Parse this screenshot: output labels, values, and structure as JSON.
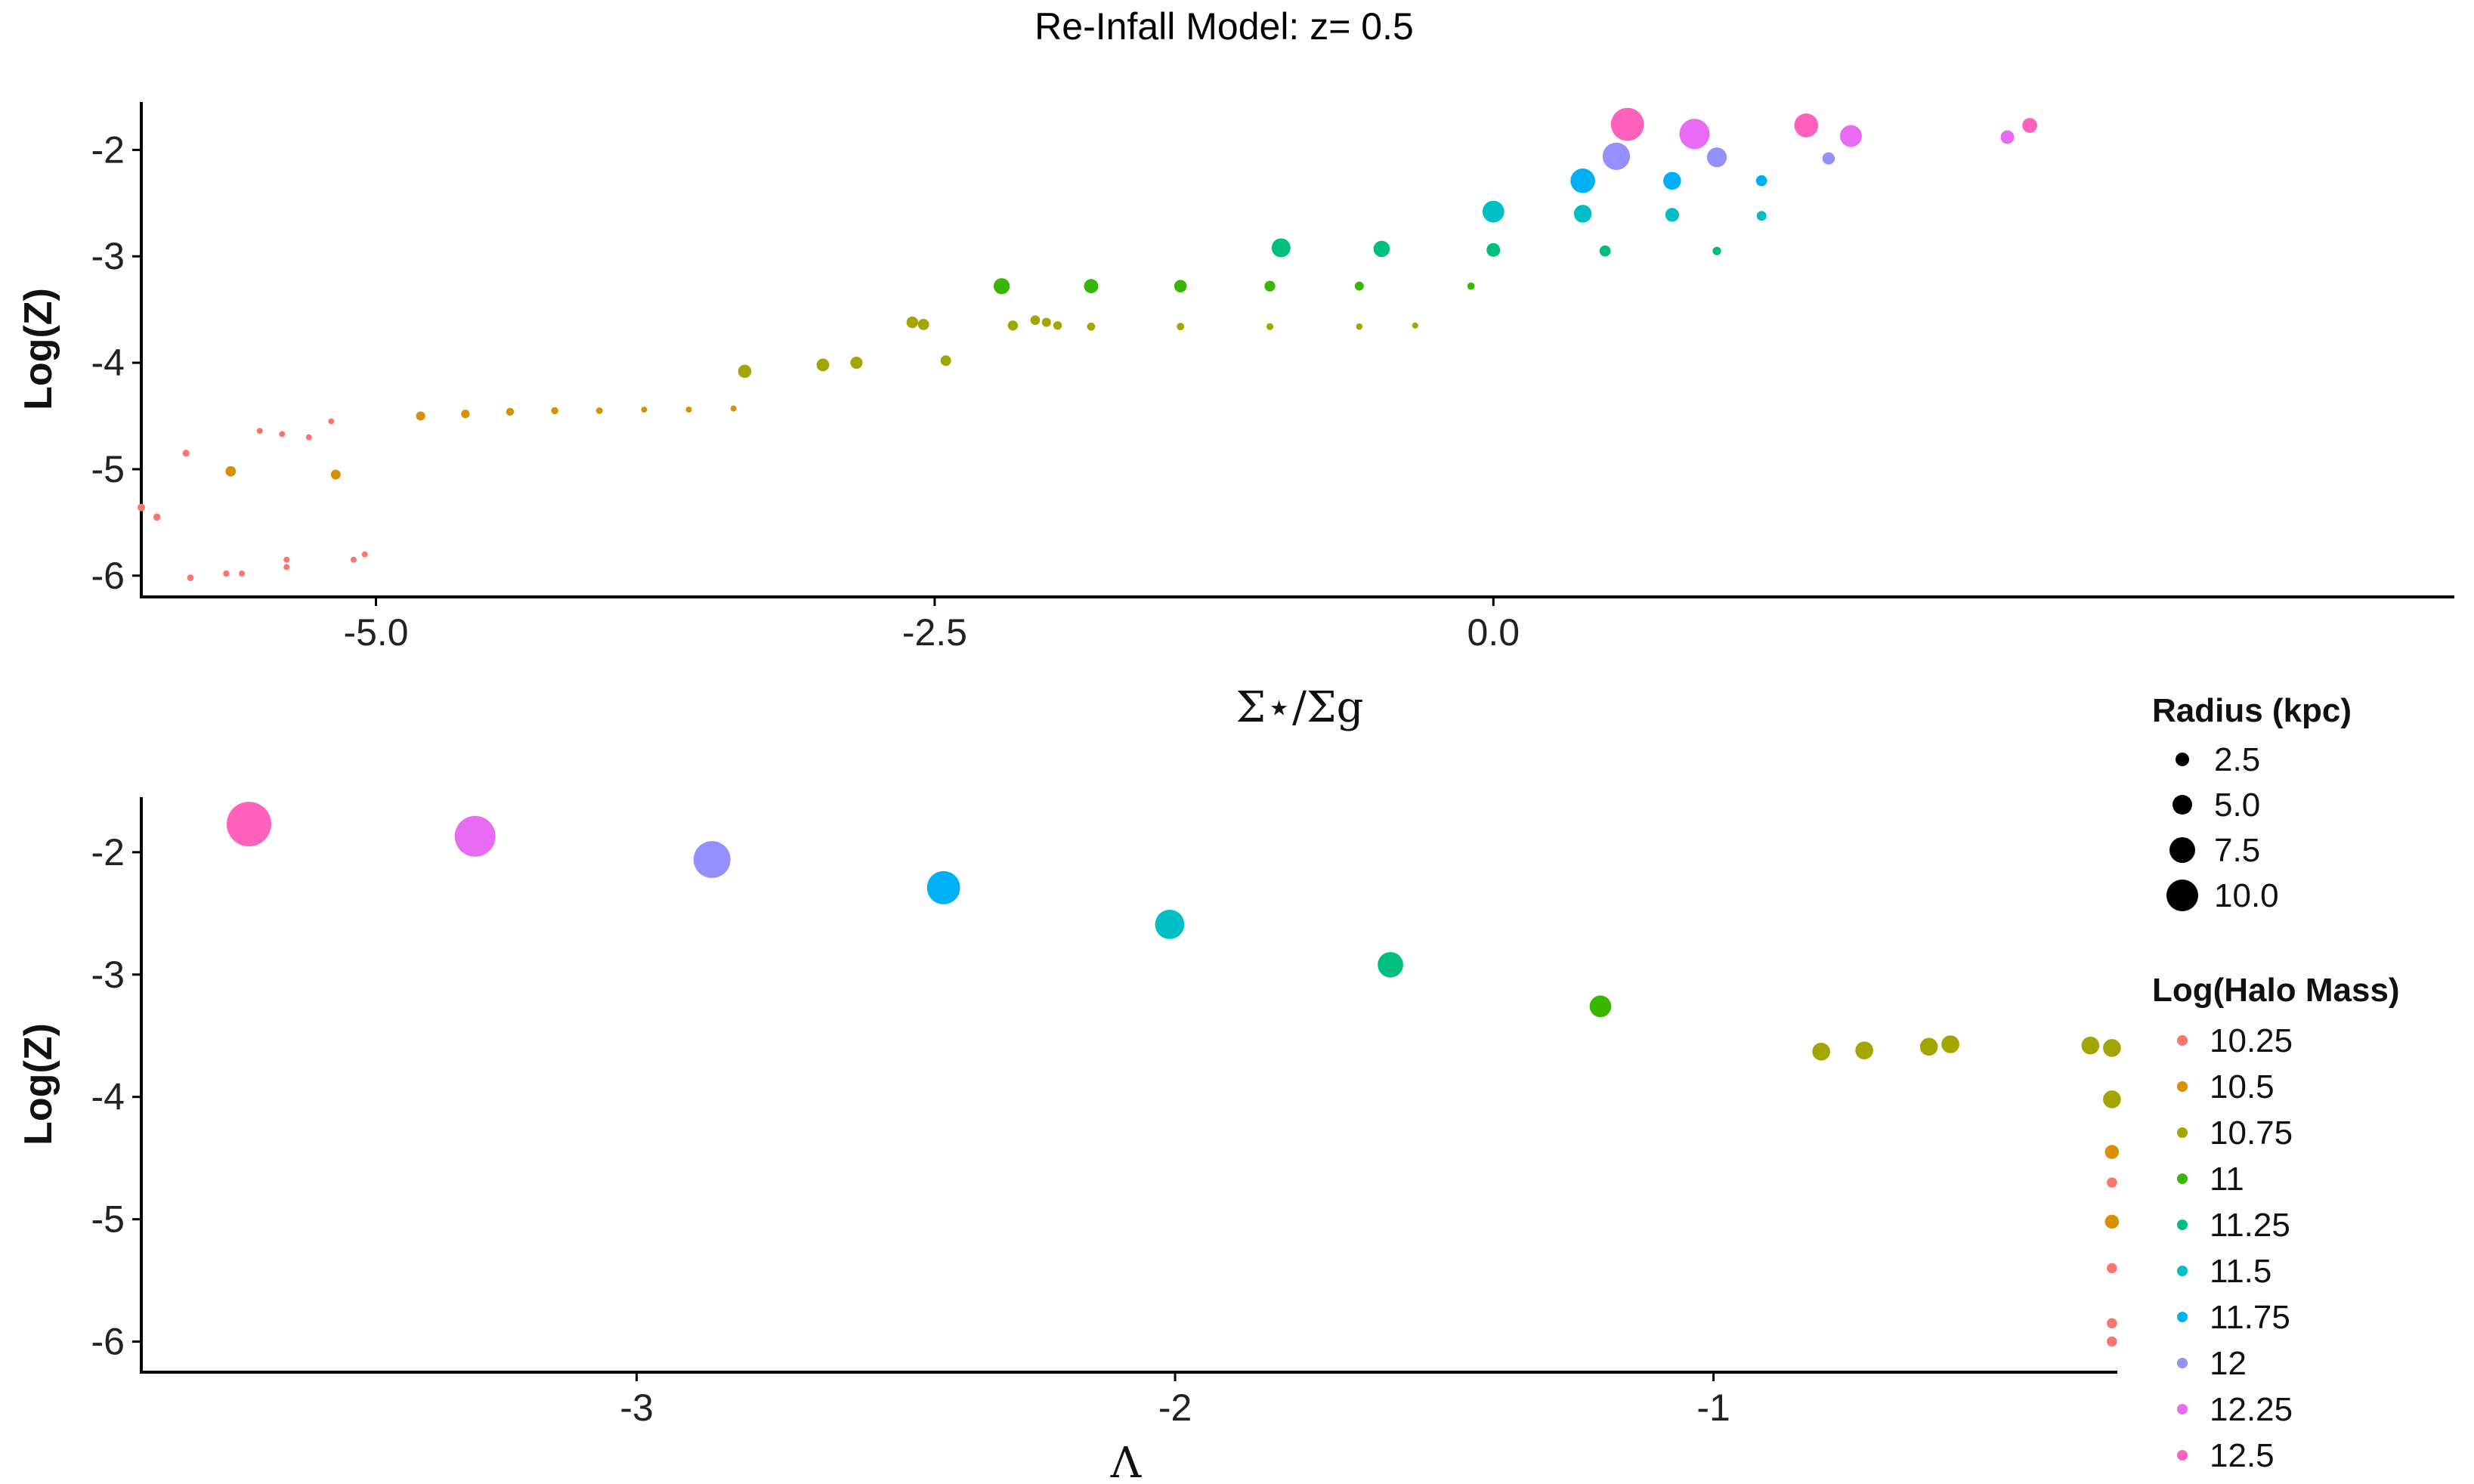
{
  "title": "Re-Infall Model: z= 0.5",
  "colors": {
    "10.25": "#F8766D",
    "10.5": "#D89000",
    "10.75": "#A3A500",
    "11": "#39B600",
    "11.25": "#00BF7D",
    "11.5": "#00BFC4",
    "11.75": "#00B0F6",
    "12": "#9590FF",
    "12.25": "#E76BF3",
    "12.5": "#FF62BC"
  },
  "legend": {
    "size_title": "Radius (kpc)",
    "size_entries": [
      "2.5",
      "5.0",
      "7.5",
      "10.0"
    ],
    "size_values": [
      2.5,
      5.0,
      7.5,
      10.0
    ],
    "color_title": "Log(Halo Mass)",
    "color_entries": [
      "10.25",
      "10.5",
      "10.75",
      "11",
      "11.25",
      "11.5",
      "11.75",
      "12",
      "12.25",
      "12.5"
    ]
  },
  "chart_data": [
    {
      "type": "scatter",
      "title": "Re-Infall Model: z= 0.5",
      "xlabel": "Σ⋆/Σg",
      "ylabel": "Log(Z)",
      "xlim": [
        -6.05,
        4.3
      ],
      "ylim": [
        -6.2,
        -1.55
      ],
      "xticks": [
        "-5.0",
        "-2.5",
        "0.0"
      ],
      "xtick_values": [
        -5.0,
        -2.5,
        0.0
      ],
      "yticks": [
        "-2",
        "-3",
        "-4",
        "-5",
        "-6"
      ],
      "ytick_values": [
        -2,
        -3,
        -4,
        -5,
        -6
      ],
      "grid": false,
      "series": [
        {
          "name": "10.25",
          "points": [
            [
              -6.05,
              -5.36
            ],
            [
              -5.98,
              -5.45
            ],
            [
              -5.85,
              -4.85
            ],
            [
              -5.83,
              -6.02
            ],
            [
              -5.67,
              -5.98
            ],
            [
              -5.6,
              -5.98
            ],
            [
              -5.52,
              -4.64
            ],
            [
              -5.42,
              -4.67
            ],
            [
              -5.3,
              -4.7
            ],
            [
              -5.4,
              -5.85
            ],
            [
              -5.4,
              -5.92
            ],
            [
              -5.2,
              -4.55
            ],
            [
              -5.1,
              -5.85
            ],
            [
              -5.05,
              -5.8
            ]
          ]
        },
        {
          "name": "10.5",
          "points": [
            [
              -5.65,
              -5.02
            ],
            [
              -5.18,
              -5.05
            ],
            [
              -4.8,
              -4.5
            ],
            [
              -4.6,
              -4.48
            ],
            [
              -4.4,
              -4.46
            ],
            [
              -4.2,
              -4.45
            ],
            [
              -4.0,
              -4.45
            ],
            [
              -3.8,
              -4.44
            ],
            [
              -3.6,
              -4.44
            ],
            [
              -3.4,
              -4.43
            ]
          ]
        },
        {
          "name": "10.75",
          "points": [
            [
              -3.35,
              -4.08
            ],
            [
              -3.0,
              -4.02
            ],
            [
              -2.85,
              -4.0
            ],
            [
              -2.6,
              -3.62
            ],
            [
              -2.55,
              -3.64
            ],
            [
              -2.45,
              -3.98
            ],
            [
              -2.15,
              -3.65
            ],
            [
              -2.05,
              -3.6
            ],
            [
              -2.0,
              -3.62
            ],
            [
              -1.95,
              -3.65
            ],
            [
              -1.8,
              -3.66
            ],
            [
              -1.4,
              -3.66
            ],
            [
              -1.0,
              -3.66
            ],
            [
              -0.6,
              -3.66
            ],
            [
              -0.35,
              -3.65
            ]
          ]
        },
        {
          "name": "11",
          "points": [
            [
              -2.2,
              -3.28
            ],
            [
              -1.8,
              -3.28
            ],
            [
              -1.4,
              -3.28
            ],
            [
              -1.0,
              -3.28
            ],
            [
              -0.6,
              -3.28
            ],
            [
              -0.1,
              -3.28
            ]
          ]
        },
        {
          "name": "11.25",
          "points": [
            [
              -0.95,
              -2.92
            ],
            [
              -0.5,
              -2.93
            ],
            [
              0.0,
              -2.94
            ],
            [
              0.5,
              -2.95
            ],
            [
              1.0,
              -2.95
            ]
          ]
        },
        {
          "name": "11.5",
          "points": [
            [
              0.0,
              -2.58
            ],
            [
              0.4,
              -2.6
            ],
            [
              0.8,
              -2.61
            ],
            [
              1.2,
              -2.62
            ]
          ]
        },
        {
          "name": "11.75",
          "points": [
            [
              0.4,
              -2.29
            ],
            [
              0.8,
              -2.29
            ],
            [
              1.2,
              -2.29
            ]
          ]
        },
        {
          "name": "12",
          "points": [
            [
              0.55,
              -2.06
            ],
            [
              1.0,
              -2.07
            ],
            [
              1.5,
              -2.08
            ]
          ]
        },
        {
          "name": "12.25",
          "points": [
            [
              0.9,
              -1.85
            ],
            [
              1.6,
              -1.87
            ],
            [
              2.3,
              -1.88
            ]
          ]
        },
        {
          "name": "12.5",
          "points": [
            [
              0.6,
              -1.76
            ],
            [
              1.4,
              -1.77
            ],
            [
              2.4,
              -1.77
            ]
          ]
        }
      ]
    },
    {
      "type": "scatter",
      "xlabel": "Λ",
      "ylabel": "Log(Z)",
      "xlim": [
        -3.92,
        -0.25
      ],
      "ylim": [
        -6.25,
        -1.55
      ],
      "xticks": [
        "-3",
        "-2",
        "-1"
      ],
      "xtick_values": [
        -3,
        -2,
        -1
      ],
      "yticks": [
        "-2",
        "-3",
        "-4",
        "-5",
        "-6"
      ],
      "ytick_values": [
        -2,
        -3,
        -4,
        -5,
        -6
      ],
      "grid": false,
      "series": [
        {
          "name": "12.5",
          "points": [
            [
              -3.72,
              -1.77
            ]
          ]
        },
        {
          "name": "12.25",
          "points": [
            [
              -3.3,
              -1.87
            ]
          ]
        },
        {
          "name": "12",
          "points": [
            [
              -2.86,
              -2.06
            ]
          ]
        },
        {
          "name": "11.75",
          "points": [
            [
              -2.43,
              -2.29
            ]
          ]
        },
        {
          "name": "11.5",
          "points": [
            [
              -2.01,
              -2.59
            ]
          ]
        },
        {
          "name": "11.25",
          "points": [
            [
              -1.6,
              -2.92
            ]
          ]
        },
        {
          "name": "11",
          "points": [
            [
              -1.21,
              -3.26
            ]
          ]
        },
        {
          "name": "10.75",
          "points": [
            [
              -0.8,
              -3.63
            ],
            [
              -0.72,
              -3.62
            ],
            [
              -0.6,
              -3.59
            ],
            [
              -0.56,
              -3.57
            ],
            [
              -0.3,
              -3.58
            ],
            [
              -0.26,
              -3.6
            ],
            [
              -0.26,
              -4.02
            ]
          ]
        },
        {
          "name": "10.5",
          "points": [
            [
              -0.26,
              -4.45
            ],
            [
              -0.26,
              -5.02
            ]
          ]
        },
        {
          "name": "10.25",
          "points": [
            [
              -0.26,
              -4.7
            ],
            [
              -0.26,
              -5.4
            ],
            [
              -0.26,
              -5.85
            ],
            [
              -0.26,
              -6.0
            ]
          ]
        }
      ]
    }
  ]
}
